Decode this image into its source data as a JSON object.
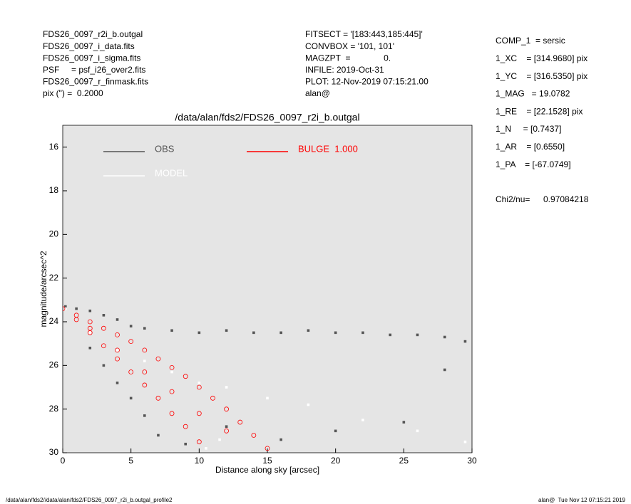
{
  "header": {
    "left": [
      "FDS26_0097_r2i_b.outgal",
      "FDS26_0097_i_data.fits",
      "FDS26_0097_i_sigma.fits",
      "PSF     = psf_i26_over2.fits",
      "FDS26_0097_r_finmask.fits",
      "pix (\") =  0.2000"
    ],
    "center": [
      "FITSECT = '[183:443,185:445]'",
      "CONVBOX = '101, 101'",
      "MAGZPT  =              0.",
      "INFILE: 2019-Oct-31",
      "PLOT: 12-Nov-2019 07:15:21.00",
      "alan@"
    ],
    "right": [
      "COMP_1  = sersic",
      "1_XC    = [314.9680] pix",
      "1_YC    = [316.5350] pix",
      "1_MAG   = 19.0782",
      "1_RE    = [22.1528] pix",
      "1_N     = [0.7437]",
      "1_AR    = [0.6550]",
      "1_PA    = [-67.0749]"
    ],
    "chi2": {
      "label": "Chi2/nu=",
      "value": "0.97084218"
    }
  },
  "footer": {
    "left": "/data/alan/fds2//data/alan/fds2/FDS26_0097_r2i_b.outgal_profile2",
    "right": "alan@  Tue Nov 12 07:15:21 2019"
  },
  "chart_data": {
    "type": "scatter",
    "title": "/data/alan/fds2/FDS26_0097_r2i_b.outgal",
    "x_label": "Distance along sky [arcsec]",
    "y_label": "magnitude/arcsec^2",
    "xlim": [
      0,
      30
    ],
    "ylim": [
      30,
      15
    ],
    "xticks": [
      0,
      5,
      10,
      15,
      20,
      25,
      30
    ],
    "yticks": [
      16,
      18,
      20,
      22,
      24,
      26,
      28,
      30
    ],
    "background": "#e5e5e5",
    "series": [
      {
        "name": "OBS",
        "color": "#555555",
        "marker": "square",
        "x": [
          0.2,
          1,
          2,
          3,
          4,
          5,
          6,
          8,
          10,
          12,
          14,
          16,
          18,
          20,
          22,
          24,
          26,
          28,
          29.5,
          2,
          3,
          4,
          5,
          6,
          7,
          9,
          12,
          16,
          20,
          25,
          28
        ],
        "y": [
          23.3,
          23.4,
          23.5,
          23.7,
          23.9,
          24.2,
          24.3,
          24.4,
          24.5,
          24.4,
          24.5,
          24.5,
          24.4,
          24.5,
          24.5,
          24.6,
          24.6,
          24.7,
          24.9,
          25.2,
          26.0,
          26.8,
          27.5,
          28.3,
          29.2,
          29.6,
          28.8,
          29.4,
          29.0,
          28.6,
          26.2
        ]
      },
      {
        "name": "MODEL",
        "color": "#ffffff",
        "marker": "square",
        "x": [
          0.2,
          2,
          4,
          6,
          8,
          10,
          12,
          15,
          18,
          22,
          26,
          29.5,
          10.5,
          11.5
        ],
        "y": [
          23.4,
          24.5,
          25.3,
          25.8,
          26.3,
          26.8,
          27.0,
          27.5,
          27.8,
          28.5,
          29.0,
          29.5,
          29.8,
          29.4
        ]
      },
      {
        "name": "BULGE  1.000",
        "color": "#ff0000",
        "marker": "circle",
        "x": [
          0,
          1,
          2,
          3,
          4,
          5,
          6,
          7,
          8,
          9,
          10,
          11,
          12,
          13,
          14,
          15,
          1,
          2,
          3,
          4,
          5,
          6,
          7,
          8,
          9,
          10,
          2,
          4,
          6,
          8,
          10,
          12
        ],
        "y": [
          23.4,
          23.7,
          24.0,
          24.3,
          24.6,
          24.9,
          25.3,
          25.7,
          26.1,
          26.5,
          27.0,
          27.5,
          28.0,
          28.6,
          29.2,
          29.8,
          23.9,
          24.5,
          25.1,
          25.7,
          26.3,
          26.9,
          27.5,
          28.2,
          28.8,
          29.5,
          24.3,
          25.3,
          26.3,
          27.2,
          28.2,
          29.0
        ]
      }
    ]
  }
}
